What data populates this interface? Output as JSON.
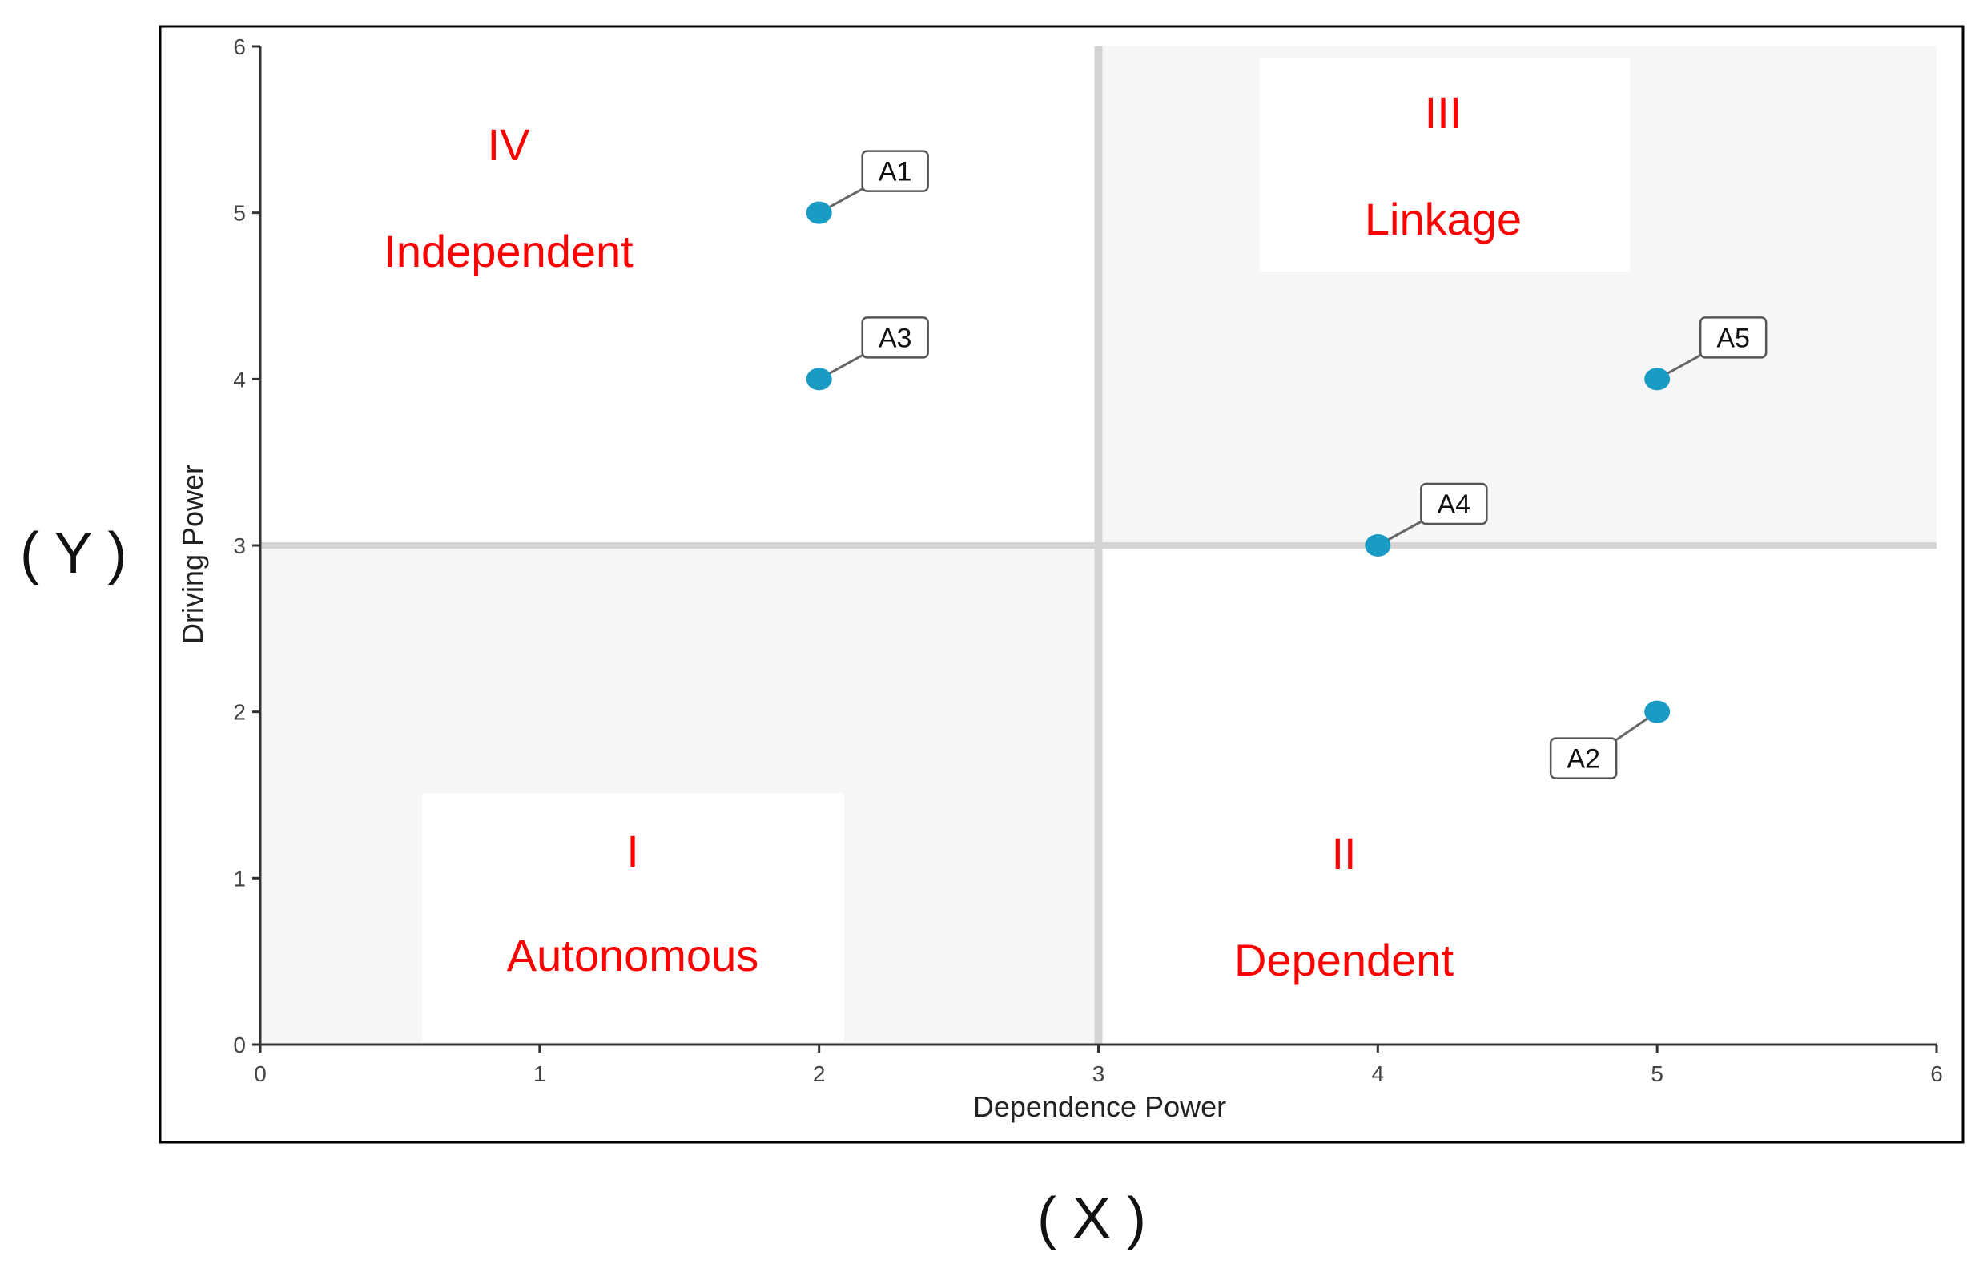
{
  "chart_data": {
    "type": "scatter",
    "title": "",
    "xlabel": "Dependence Power",
    "ylabel": "Driving Power",
    "xlim": [
      0,
      6
    ],
    "ylim": [
      0,
      6
    ],
    "x_ticks": [
      0,
      1,
      2,
      3,
      4,
      5,
      6
    ],
    "y_ticks": [
      0,
      1,
      2,
      3,
      4,
      5,
      6
    ],
    "grid": false,
    "divider_lines": {
      "x": 3,
      "y": 3
    },
    "points": [
      {
        "label": "A1",
        "x": 2,
        "y": 5
      },
      {
        "label": "A2",
        "x": 5,
        "y": 2
      },
      {
        "label": "A3",
        "x": 2,
        "y": 4
      },
      {
        "label": "A4",
        "x": 4,
        "y": 3
      },
      {
        "label": "A5",
        "x": 5,
        "y": 4
      }
    ],
    "quadrants": [
      {
        "numeral": "I",
        "name": "Autonomous",
        "shaded": true
      },
      {
        "numeral": "II",
        "name": "Dependent",
        "shaded": false
      },
      {
        "numeral": "III",
        "name": "Linkage",
        "shaded": true
      },
      {
        "numeral": "IV",
        "name": "Independent",
        "shaded": false
      }
    ],
    "colors": {
      "point": "#1a9bc4",
      "quadrant_text": "#ff0000",
      "divider": "#d4d4d4",
      "shade": "#f6f6f6"
    }
  },
  "outer_labels": {
    "y": "( Y )",
    "x": "( X )"
  }
}
